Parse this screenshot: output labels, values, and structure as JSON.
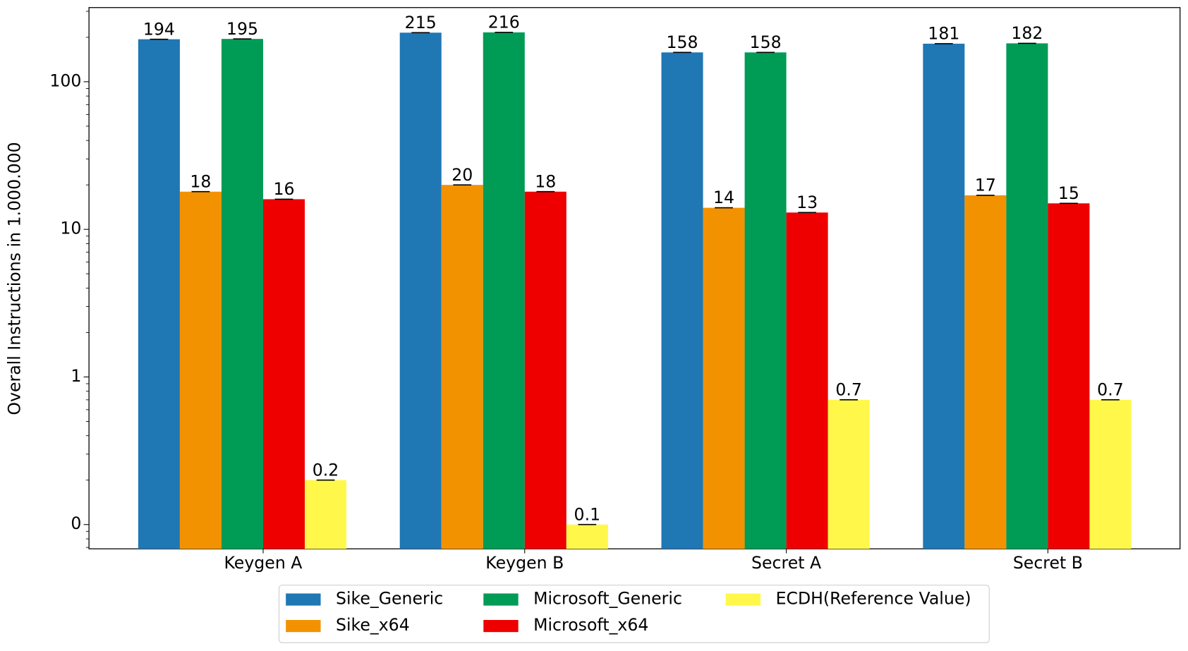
{
  "chart_data": {
    "type": "bar",
    "y_label": "Overall Instructions in 1.000.000",
    "categories": [
      "Keygen A",
      "Keygen B",
      "Secret A",
      "Secret B"
    ],
    "series": [
      {
        "name": "Sike_Generic",
        "color": "#1f77b4",
        "values": [
          194,
          215,
          158,
          181
        ]
      },
      {
        "name": "Sike_x64",
        "color": "#f39200",
        "values": [
          18,
          20,
          14,
          17
        ]
      },
      {
        "name": "Microsoft_Generic",
        "color": "#009b55",
        "values": [
          195,
          216,
          158,
          182
        ]
      },
      {
        "name": "Microsoft_x64",
        "color": "#ee0000",
        "values": [
          16,
          18,
          13,
          15
        ]
      },
      {
        "name": "ECDH(Reference Value)",
        "color": "#fff84a",
        "values": [
          0.2,
          0.1,
          0.7,
          0.7
        ]
      }
    ],
    "log_scale": true,
    "ylim": [
      0.0685,
      318
    ],
    "yticks": [
      {
        "value": 0.1,
        "label": "0"
      },
      1,
      10,
      100
    ],
    "legend": "bottom"
  }
}
